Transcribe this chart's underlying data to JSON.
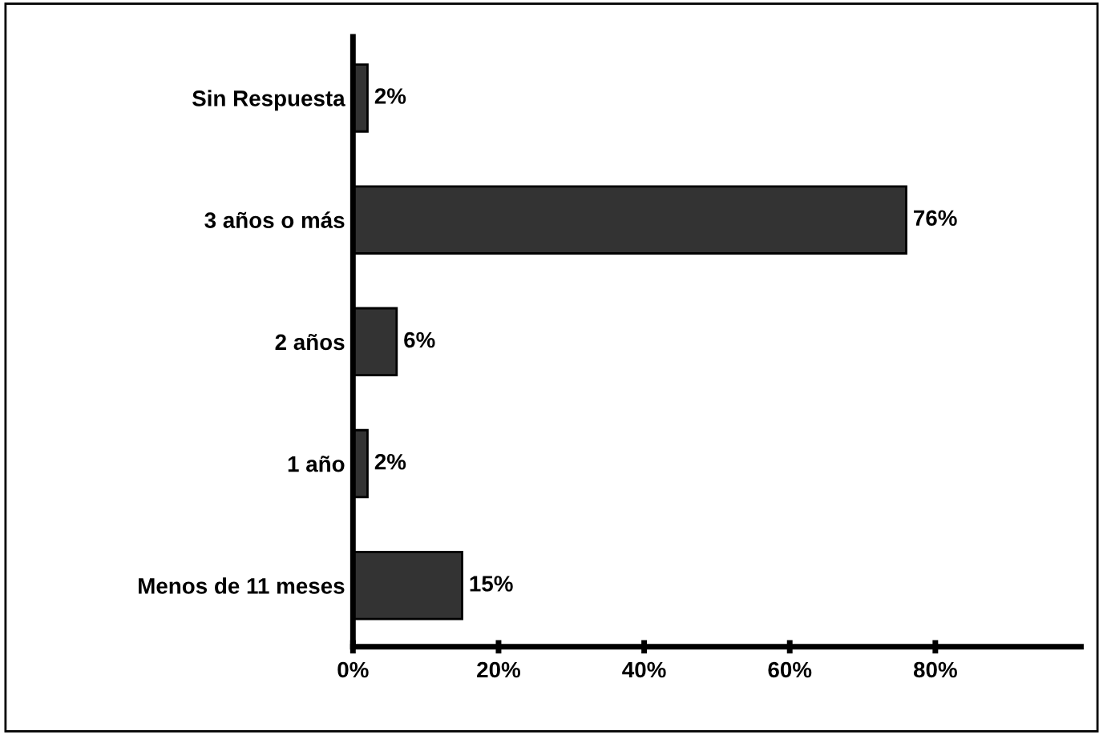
{
  "chart_data": {
    "type": "bar",
    "orientation": "horizontal",
    "categories": [
      "Sin Respuesta",
      "3 años o más",
      "2 años",
      "1 año",
      "Menos de 11 meses"
    ],
    "values": [
      2,
      76,
      6,
      2,
      15
    ],
    "value_labels": [
      "2%",
      "76%",
      "6%",
      "2%",
      "15%"
    ],
    "color": "#333333",
    "xlim": [
      0,
      100
    ],
    "xticks": [
      {
        "value": 0,
        "label": "0%"
      },
      {
        "value": 20,
        "label": "20%"
      },
      {
        "value": 40,
        "label": "40%"
      },
      {
        "value": 60,
        "label": "60%"
      },
      {
        "value": 80,
        "label": "80%"
      }
    ],
    "grid": false,
    "legend": false
  }
}
